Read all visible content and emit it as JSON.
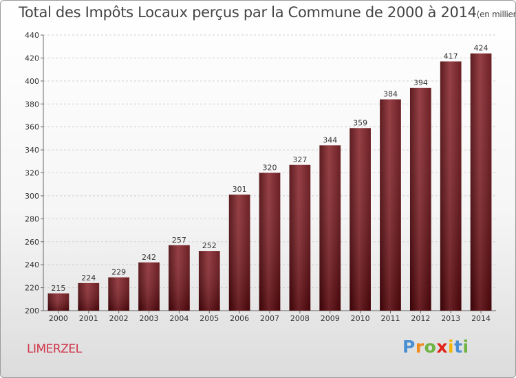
{
  "chart_data": {
    "type": "bar",
    "title": "Total des Impôts Locaux perçus par la Commune de 2000 à 2014",
    "title_unit": "(en milliers d'€)",
    "categories": [
      "2000",
      "2001",
      "2002",
      "2003",
      "2004",
      "2005",
      "2006",
      "2007",
      "2008",
      "2009",
      "2010",
      "2011",
      "2012",
      "2013",
      "2014"
    ],
    "values": [
      215,
      224,
      229,
      242,
      257,
      252,
      301,
      320,
      327,
      344,
      359,
      384,
      394,
      417,
      424
    ],
    "ylim": [
      200,
      440
    ],
    "yticks": [
      200,
      220,
      240,
      260,
      280,
      300,
      320,
      340,
      360,
      380,
      400,
      420,
      440
    ],
    "grid": true,
    "xlabel": "",
    "ylabel": "",
    "bar_color": "#6e0d14"
  },
  "commune": "LIMERZEL",
  "brand": {
    "letters": [
      "P",
      "r",
      "o",
      "x",
      "i",
      "t",
      "i"
    ],
    "colors": [
      "#4a8fd4",
      "#f08a1c",
      "#6cb33f",
      "#e2231a",
      "#f5b400",
      "#4a8fd4",
      "#6cb33f"
    ]
  }
}
